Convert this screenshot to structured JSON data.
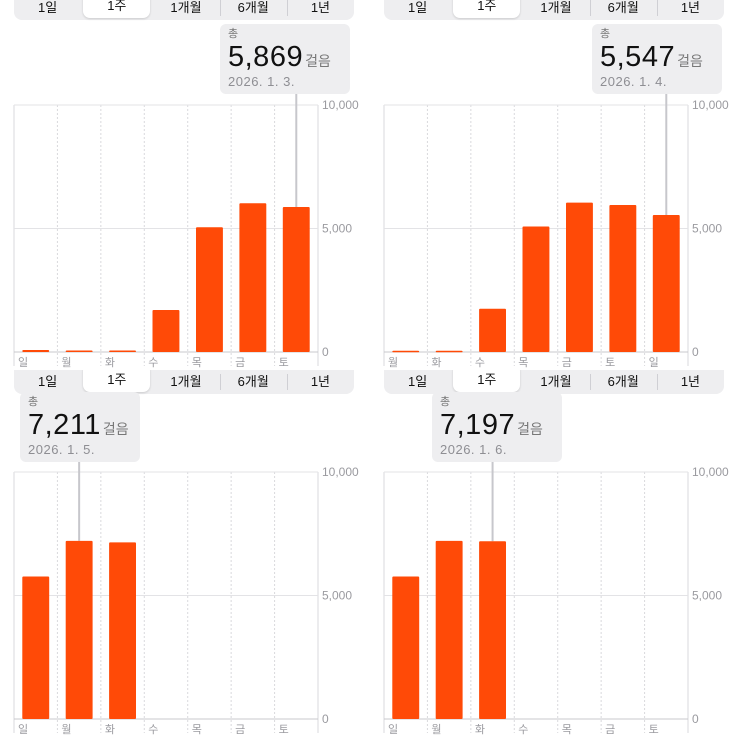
{
  "segment_options": [
    "1일",
    "1주",
    "1개월",
    "6개월",
    "1년"
  ],
  "selected_segment": "1주",
  "callout_label": "총",
  "unit": "걸음",
  "accent_color": "#ff4a07",
  "chart_data": [
    {
      "type": "bar",
      "categories": [
        "일",
        "월",
        "화",
        "수",
        "목",
        "금",
        "토"
      ],
      "values": [
        80,
        60,
        60,
        1700,
        5050,
        6020,
        5869
      ],
      "ylim": [
        0,
        10000
      ],
      "y_ticks": [
        "10,000",
        "5,000",
        "0"
      ],
      "highlight_index": 6,
      "callout": {
        "total": "5,869",
        "date": "2026. 1. 3."
      }
    },
    {
      "type": "bar",
      "categories": [
        "월",
        "화",
        "수",
        "목",
        "금",
        "토",
        "일"
      ],
      "values": [
        50,
        50,
        1750,
        5080,
        6050,
        5950,
        5547
      ],
      "ylim": [
        0,
        10000
      ],
      "y_ticks": [
        "10,000",
        "5,000",
        "0"
      ],
      "highlight_index": 6,
      "callout": {
        "total": "5,547",
        "date": "2026. 1. 4."
      }
    },
    {
      "type": "bar",
      "categories": [
        "일",
        "월",
        "화",
        "수",
        "목",
        "금",
        "토"
      ],
      "values": [
        5770,
        7211,
        7150,
        0,
        0,
        0,
        0
      ],
      "ylim": [
        0,
        10000
      ],
      "y_ticks": [
        "10,000",
        "5,000",
        "0"
      ],
      "highlight_index": 1,
      "callout": {
        "total": "7,211",
        "date": "2026. 1. 5."
      }
    },
    {
      "type": "bar",
      "categories": [
        "일",
        "월",
        "화",
        "수",
        "목",
        "금",
        "토"
      ],
      "values": [
        5770,
        7211,
        7197,
        0,
        0,
        0,
        0
      ],
      "ylim": [
        0,
        10000
      ],
      "y_ticks": [
        "10,000",
        "5,000",
        "0"
      ],
      "highlight_index": 2,
      "callout": {
        "total": "7,197",
        "date": "2026. 1. 6."
      }
    }
  ]
}
